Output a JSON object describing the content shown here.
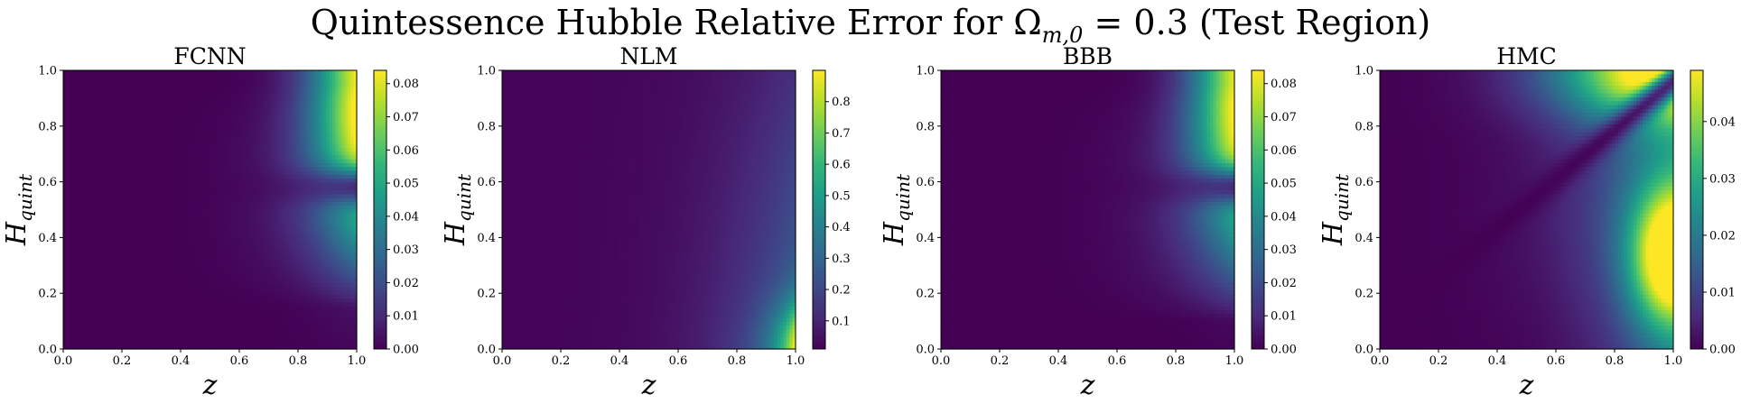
{
  "figure": {
    "title_prefix": "Quintessence Hubble Relative Error for Ω",
    "title_sub": "m,0",
    "title_suffix": " = 0.3 (Test Region)"
  },
  "colormap": [
    "#440154",
    "#482878",
    "#3e4989",
    "#31688e",
    "#26828e",
    "#1f9e89",
    "#35b779",
    "#6ece58",
    "#b5de2b",
    "#fde725"
  ],
  "chart_data": [
    {
      "type": "heatmap",
      "title": "FCNN",
      "xlabel": "z",
      "ylabel_main": "H",
      "ylabel_sub": "quint",
      "xlim": [
        0.0,
        1.0
      ],
      "ylim": [
        0.0,
        1.0
      ],
      "xticks": [
        "0.0",
        "0.2",
        "0.4",
        "0.6",
        "0.8",
        "1.0"
      ],
      "yticks": [
        "0.0",
        "0.2",
        "0.4",
        "0.6",
        "0.8",
        "1.0"
      ],
      "colorbar": {
        "min": 0.0,
        "max": 0.084,
        "ticks": [
          "0.00",
          "0.01",
          "0.02",
          "0.03",
          "0.04",
          "0.05",
          "0.06",
          "0.07",
          "0.08"
        ],
        "tick_values": [
          0.0,
          0.01,
          0.02,
          0.03,
          0.04,
          0.05,
          0.06,
          0.07,
          0.08
        ]
      },
      "pattern": "right-edge error, max at top-right, dip near H≈0.58",
      "model": {
        "kind": "edge",
        "power": 5.0,
        "peaks": [
          [
            1.0,
            1.0,
            0.084,
            0.35
          ]
        ],
        "base_amp": 0.028,
        "base_ymin": 0.15,
        "base_ymax": 0.95,
        "dip_y": 0.58,
        "dip_w": 0.05
      }
    },
    {
      "type": "heatmap",
      "title": "NLM",
      "xlabel": "z",
      "ylabel_main": "H",
      "ylabel_sub": "quint",
      "xlim": [
        0.0,
        1.0
      ],
      "ylim": [
        0.0,
        1.0
      ],
      "xticks": [
        "0.0",
        "0.2",
        "0.4",
        "0.6",
        "0.8",
        "1.0"
      ],
      "yticks": [
        "0.0",
        "0.2",
        "0.4",
        "0.6",
        "0.8",
        "1.0"
      ],
      "colorbar": {
        "min": 0.01,
        "max": 0.9,
        "ticks": [
          "0.1",
          "0.2",
          "0.3",
          "0.4",
          "0.5",
          "0.6",
          "0.7",
          "0.8"
        ],
        "tick_values": [
          0.1,
          0.2,
          0.3,
          0.4,
          0.5,
          0.6,
          0.7,
          0.8
        ]
      },
      "pattern": "error grows toward right edge, max at bottom-right",
      "model": {
        "kind": "nlm"
      }
    },
    {
      "type": "heatmap",
      "title": "BBB",
      "xlabel": "z",
      "ylabel_main": "H",
      "ylabel_sub": "quint",
      "xlim": [
        0.0,
        1.0
      ],
      "ylim": [
        0.0,
        1.0
      ],
      "xticks": [
        "0.0",
        "0.2",
        "0.4",
        "0.6",
        "0.8",
        "1.0"
      ],
      "yticks": [
        "0.0",
        "0.2",
        "0.4",
        "0.6",
        "0.8",
        "1.0"
      ],
      "colorbar": {
        "min": 0.0,
        "max": 0.084,
        "ticks": [
          "0.00",
          "0.01",
          "0.02",
          "0.03",
          "0.04",
          "0.05",
          "0.06",
          "0.07",
          "0.08"
        ],
        "tick_values": [
          0.0,
          0.01,
          0.02,
          0.03,
          0.04,
          0.05,
          0.06,
          0.07,
          0.08
        ]
      },
      "pattern": "right-edge error, max at top-right, dip near H≈0.58",
      "model": {
        "kind": "edge",
        "power": 5.0,
        "peaks": [
          [
            1.0,
            1.0,
            0.082,
            0.33
          ]
        ],
        "base_amp": 0.03,
        "base_ymin": 0.1,
        "base_ymax": 0.95,
        "dip_y": 0.58,
        "dip_w": 0.05
      }
    },
    {
      "type": "heatmap",
      "title": "HMC",
      "xlabel": "z",
      "ylabel_main": "H",
      "ylabel_sub": "quint",
      "xlim": [
        0.0,
        1.0
      ],
      "ylim": [
        0.0,
        1.0
      ],
      "xticks": [
        "0.0",
        "0.2",
        "0.4",
        "0.6",
        "0.8",
        "1.0"
      ],
      "yticks": [
        "0.0",
        "0.2",
        "0.4",
        "0.6",
        "0.8",
        "1.0"
      ],
      "colorbar": {
        "min": 0.0,
        "max": 0.049,
        "ticks": [
          "0.00",
          "0.01",
          "0.02",
          "0.03",
          "0.04"
        ],
        "tick_values": [
          0.0,
          0.01,
          0.02,
          0.03,
          0.04
        ]
      },
      "pattern": "two lobes on right edge (top ~0.05, middle-lower ~0.047) separated by a diagonal dark valley",
      "model": {
        "kind": "hmc"
      }
    }
  ]
}
